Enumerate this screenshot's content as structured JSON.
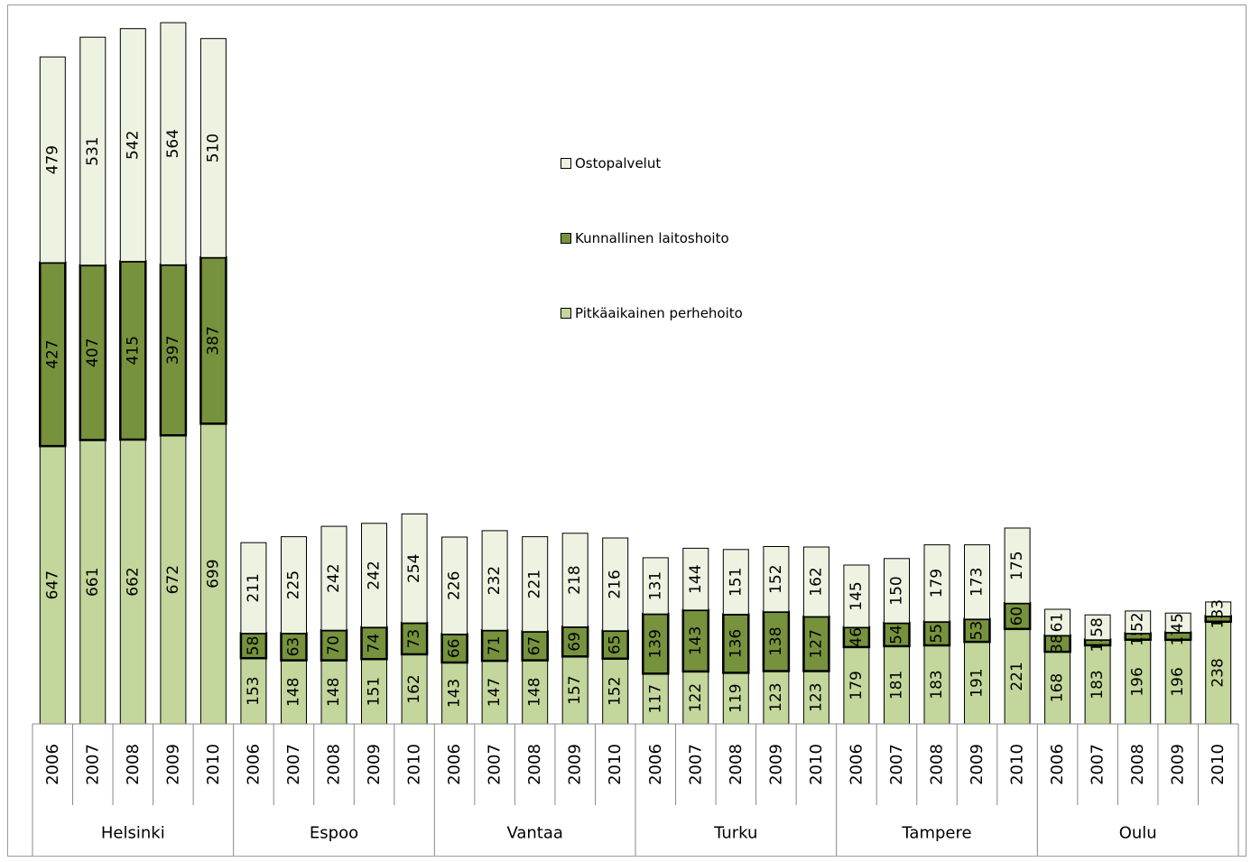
{
  "chart_data": {
    "type": "bar",
    "stacked": true,
    "title": "",
    "legend": {
      "position": "center",
      "items": [
        {
          "name": "Ostopalvelut",
          "color": "#eef2e1"
        },
        {
          "name": "Kunnallinen laitoshoito",
          "color": "#76923c"
        },
        {
          "name": "Pitkäaikainen perhehoito",
          "color": "#c3d69b"
        }
      ]
    },
    "groups": [
      {
        "name": "Helsinki",
        "years": [
          "2006",
          "2007",
          "2008",
          "2009",
          "2010"
        ]
      },
      {
        "name": "Espoo",
        "years": [
          "2006",
          "2007",
          "2008",
          "2009",
          "2010"
        ]
      },
      {
        "name": "Vantaa",
        "years": [
          "2006",
          "2007",
          "2008",
          "2009",
          "2010"
        ]
      },
      {
        "name": "Turku",
        "years": [
          "2006",
          "2007",
          "2008",
          "2009",
          "2010"
        ]
      },
      {
        "name": "Tampere",
        "years": [
          "2006",
          "2007",
          "2008",
          "2009",
          "2010"
        ]
      },
      {
        "name": "Oulu",
        "years": [
          "2006",
          "2007",
          "2008",
          "2009",
          "2010"
        ]
      }
    ],
    "series": [
      {
        "name": "Pitkäaikainen perhehoito",
        "values": [
          647,
          661,
          662,
          672,
          699,
          153,
          148,
          148,
          151,
          162,
          143,
          147,
          148,
          157,
          152,
          117,
          122,
          119,
          123,
          123,
          179,
          181,
          183,
          191,
          221,
          168,
          183,
          196,
          196,
          238
        ]
      },
      {
        "name": "Kunnallinen laitoshoito",
        "values": [
          427,
          407,
          415,
          397,
          387,
          58,
          63,
          70,
          74,
          73,
          66,
          71,
          67,
          69,
          65,
          139,
          143,
          136,
          138,
          127,
          46,
          54,
          55,
          53,
          60,
          38,
          13,
          15,
          17,
          13
        ]
      },
      {
        "name": "Ostopalvelut",
        "values": [
          479,
          531,
          542,
          564,
          510,
          211,
          225,
          242,
          242,
          254,
          226,
          232,
          221,
          218,
          216,
          131,
          144,
          151,
          152,
          162,
          145,
          150,
          179,
          173,
          175,
          61,
          58,
          52,
          45,
          33
        ]
      }
    ],
    "ylim": [
      0,
      1610
    ],
    "grid": false
  }
}
